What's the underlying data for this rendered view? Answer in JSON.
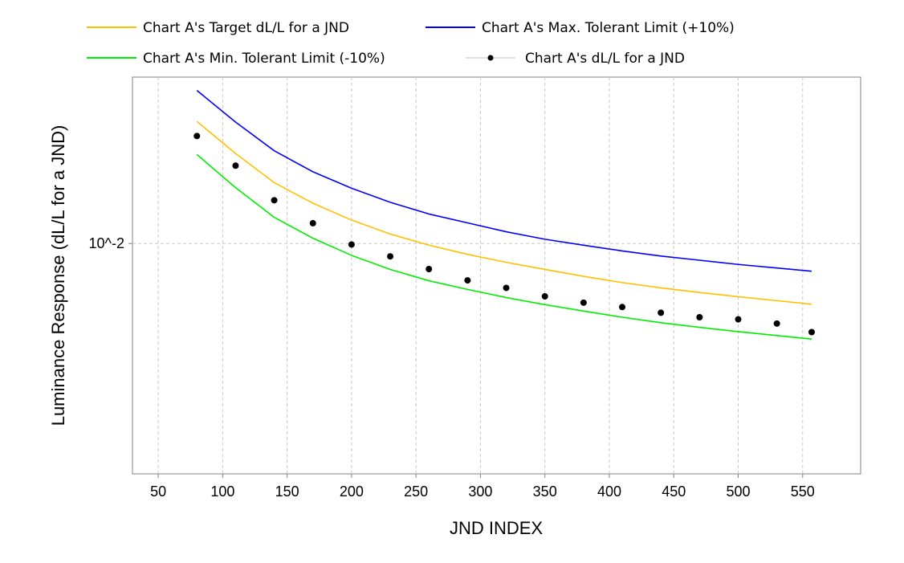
{
  "chart_data": {
    "type": "line",
    "title": "",
    "xlabel": "JND INDEX",
    "ylabel": "Luminance Response (dL/L for a JND)",
    "xlim": [
      30,
      595
    ],
    "ylim": [
      0.005,
      0.0165
    ],
    "yscale": "log",
    "x_ticks": [
      50,
      100,
      150,
      200,
      250,
      300,
      350,
      400,
      450,
      500,
      550
    ],
    "x_tick_labels": [
      "50",
      "100",
      "150",
      "200",
      "250",
      "300",
      "350",
      "400",
      "450",
      "500",
      "550"
    ],
    "y_ticks": [
      0.01
    ],
    "y_tick_labels": [
      "10^-2"
    ],
    "grid": true,
    "legend_position": "top",
    "colors": {
      "target": "#ffc000",
      "max": "#0000ff",
      "min": "#00ee00",
      "measured": "#000000",
      "grid": "#c8c8c8",
      "frame": "#808080"
    },
    "x": [
      80,
      110,
      140,
      170,
      200,
      230,
      260,
      290,
      320,
      350,
      380,
      410,
      440,
      470,
      500,
      530,
      557
    ],
    "series": [
      {
        "key": "target",
        "name": "Chart A's Target dL/L for a JND",
        "style": "line",
        "values": [
          0.01444,
          0.01311,
          0.01201,
          0.01129,
          0.01073,
          0.01029,
          0.00995,
          0.00968,
          0.00945,
          0.00925,
          0.00906,
          0.00889,
          0.00875,
          0.00863,
          0.00852,
          0.00842,
          0.00833
        ]
      },
      {
        "key": "max",
        "name": "Chart A's Max. Tolerant Limit (+10%)",
        "style": "line",
        "values": [
          0.01585,
          0.01441,
          0.01322,
          0.01241,
          0.01181,
          0.01132,
          0.01093,
          0.01064,
          0.01036,
          0.01013,
          0.00995,
          0.00978,
          0.00963,
          0.00951,
          0.00939,
          0.00929,
          0.0092
        ]
      },
      {
        "key": "min",
        "name": "Chart A's Min. Tolerant Limit (-10%)",
        "style": "line",
        "values": [
          0.01307,
          0.01183,
          0.01082,
          0.01016,
          0.00965,
          0.00925,
          0.00894,
          0.00871,
          0.0085,
          0.00832,
          0.00816,
          0.00801,
          0.00788,
          0.00777,
          0.00767,
          0.00758,
          0.0075
        ]
      },
      {
        "key": "measured",
        "name": "Chart A's dL/L for a JND",
        "style": "points",
        "values": [
          0.01382,
          0.01264,
          0.01139,
          0.01063,
          0.00997,
          0.00962,
          0.00926,
          0.00895,
          0.00875,
          0.00853,
          0.00837,
          0.00826,
          0.00812,
          0.00801,
          0.00796,
          0.00786,
          0.00766
        ]
      }
    ]
  }
}
